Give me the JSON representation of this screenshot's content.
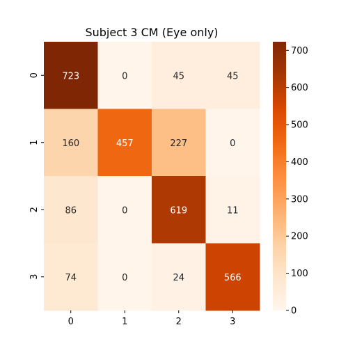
{
  "chart_data": {
    "type": "heatmap",
    "title": "Subject 3 CM (Eye only)",
    "xlabel": "",
    "ylabel": "",
    "x_categories": [
      "0",
      "1",
      "2",
      "3"
    ],
    "y_categories": [
      "0",
      "1",
      "2",
      "3"
    ],
    "values": [
      [
        723,
        0,
        45,
        45
      ],
      [
        160,
        457,
        227,
        0
      ],
      [
        86,
        0,
        619,
        11
      ],
      [
        74,
        0,
        24,
        566
      ]
    ],
    "colormap": "Oranges",
    "color_range": [
      0,
      723
    ],
    "colorbar_ticks": [
      "0",
      "100",
      "200",
      "300",
      "400",
      "500",
      "600",
      "700"
    ],
    "colorbar_tick_values": [
      0,
      100,
      200,
      300,
      400,
      500,
      600,
      700
    ],
    "colors": {
      "low": "#fff5eb",
      "high": "#7f2704",
      "text_dark": "#262626",
      "text_light": "#ffffff"
    }
  }
}
